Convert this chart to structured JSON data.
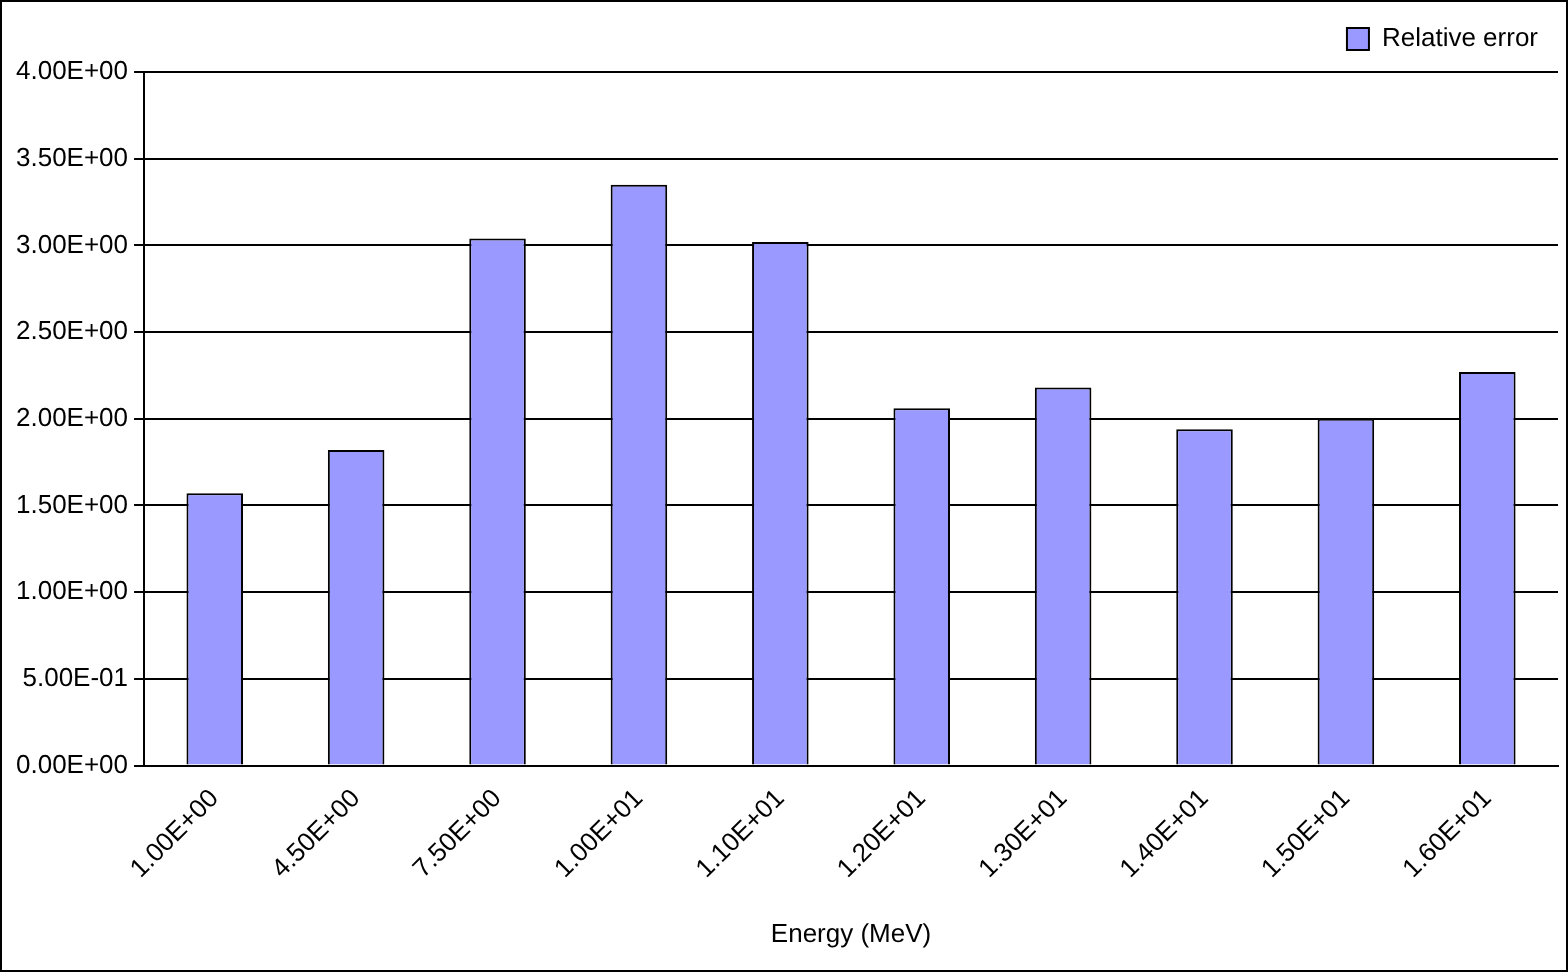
{
  "chart_data": {
    "type": "bar",
    "xlabel": "Energy (MeV)",
    "categories": [
      "1.00E+00",
      "4.50E+00",
      "7.50E+00",
      "1.00E+01",
      "1.10E+01",
      "1.20E+01",
      "1.30E+01",
      "1.40E+01",
      "1.50E+01",
      "1.60E+01"
    ],
    "series": [
      {
        "name": "Relative error",
        "color": "#9999ff",
        "values": [
          1.57,
          1.82,
          3.04,
          3.35,
          3.02,
          2.06,
          2.18,
          1.94,
          2.0,
          2.27
        ]
      }
    ],
    "ylim": [
      0,
      4
    ],
    "yticks": [
      {
        "value": 0,
        "label": "0.00E+00"
      },
      {
        "value": 0.5,
        "label": "5.00E-01"
      },
      {
        "value": 1,
        "label": "1.00E+00"
      },
      {
        "value": 1.5,
        "label": "1.50E+00"
      },
      {
        "value": 2,
        "label": "2.00E+00"
      },
      {
        "value": 2.5,
        "label": "2.50E+00"
      },
      {
        "value": 3,
        "label": "3.00E+00"
      },
      {
        "value": 3.5,
        "label": "3.50E+00"
      },
      {
        "value": 4,
        "label": "4.00E+00"
      }
    ],
    "grid": "y",
    "legend": "top right"
  }
}
